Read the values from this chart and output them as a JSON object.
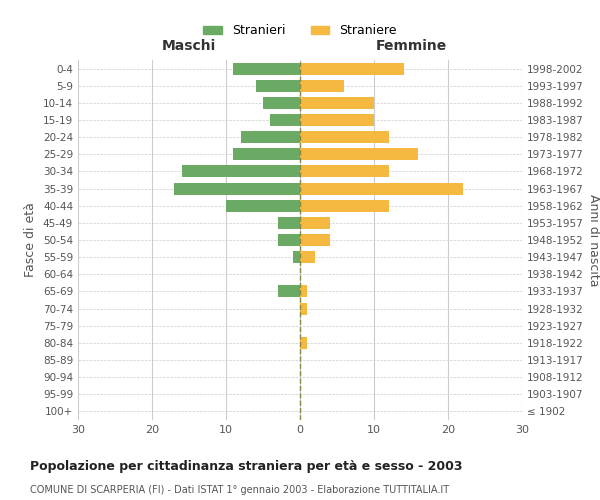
{
  "age_groups": [
    "100+",
    "95-99",
    "90-94",
    "85-89",
    "80-84",
    "75-79",
    "70-74",
    "65-69",
    "60-64",
    "55-59",
    "50-54",
    "45-49",
    "40-44",
    "35-39",
    "30-34",
    "25-29",
    "20-24",
    "15-19",
    "10-14",
    "5-9",
    "0-4"
  ],
  "birth_years": [
    "≤ 1902",
    "1903-1907",
    "1908-1912",
    "1913-1917",
    "1918-1922",
    "1923-1927",
    "1928-1932",
    "1933-1937",
    "1938-1942",
    "1943-1947",
    "1948-1952",
    "1953-1957",
    "1958-1962",
    "1963-1967",
    "1968-1972",
    "1973-1977",
    "1978-1982",
    "1983-1987",
    "1988-1992",
    "1993-1997",
    "1998-2002"
  ],
  "males": [
    0,
    0,
    0,
    0,
    0,
    0,
    0,
    3,
    0,
    1,
    3,
    3,
    10,
    17,
    16,
    9,
    8,
    4,
    5,
    6,
    9
  ],
  "females": [
    0,
    0,
    0,
    0,
    1,
    0,
    1,
    1,
    0,
    2,
    4,
    4,
    12,
    22,
    12,
    16,
    12,
    10,
    10,
    6,
    14
  ],
  "male_color": "#6aaa64",
  "female_color": "#f5b942",
  "background_color": "#ffffff",
  "grid_color": "#cccccc",
  "title": "Popolazione per cittadinanza straniera per età e sesso - 2003",
  "subtitle": "COMUNE DI SCARPERIA (FI) - Dati ISTAT 1° gennaio 2003 - Elaborazione TUTTITALIA.IT",
  "xlabel_left": "Maschi",
  "xlabel_right": "Femmine",
  "ylabel_left": "Fasce di età",
  "ylabel_right": "Anni di nascita",
  "legend_male": "Stranieri",
  "legend_female": "Straniere",
  "xlim": 30
}
